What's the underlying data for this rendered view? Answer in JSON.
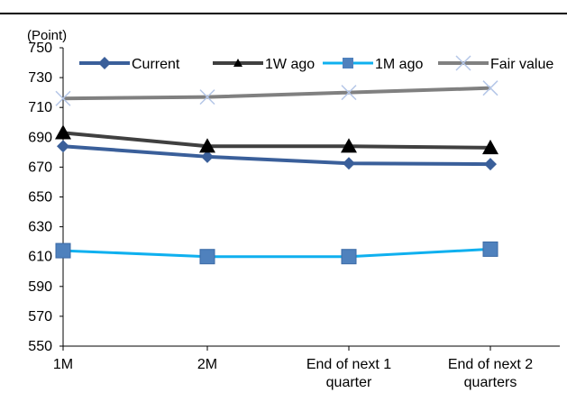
{
  "chart_data": {
    "type": "line",
    "unit_label": "(Point)",
    "categories": [
      [
        "1M"
      ],
      [
        "2M"
      ],
      [
        "End of next 1",
        "quarter"
      ],
      [
        "End of next 2",
        "quarters"
      ]
    ],
    "ylim": [
      550,
      750
    ],
    "yticks": [
      550,
      570,
      590,
      610,
      630,
      650,
      670,
      690,
      710,
      730,
      750
    ],
    "series": [
      {
        "name": "Current",
        "values": [
          684,
          677,
          672.5,
          672
        ],
        "color": "#3A5F9A",
        "marker": "diamond",
        "line_width": 4
      },
      {
        "name": "1W ago",
        "values": [
          693,
          684,
          684,
          683
        ],
        "color": "#404040",
        "marker": "triangle",
        "line_width": 4
      },
      {
        "name": "1M ago",
        "values": [
          614,
          610,
          610,
          615
        ],
        "color": "#0FB0EF",
        "marker": "square",
        "line_width": 3
      },
      {
        "name": "Fair value",
        "values": [
          716,
          717,
          720,
          723
        ],
        "color": "#808080",
        "marker": "x",
        "line_width": 4
      }
    ],
    "legend_position": "top",
    "grid": false
  }
}
